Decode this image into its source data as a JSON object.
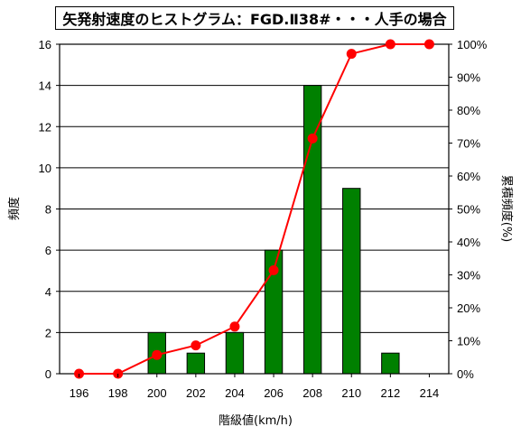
{
  "chart_data": {
    "type": "bar+line",
    "title": "矢発射速度のヒストグラム：FGD.Ⅱ38#・・・人手の場合",
    "xlabel": "階級値(km/h)",
    "ylabel_left": "頻度",
    "ylabel_right": "累積頻度(%)",
    "categories": [
      "196",
      "198",
      "200",
      "202",
      "204",
      "206",
      "208",
      "210",
      "212",
      "214"
    ],
    "bar_values": [
      0,
      0,
      2,
      1,
      2,
      6,
      14,
      9,
      1,
      0
    ],
    "cumulative_percent": [
      0,
      0,
      5.7,
      8.6,
      14.3,
      31.4,
      71.4,
      97.1,
      100,
      100
    ],
    "ylim_left": [
      0,
      16
    ],
    "yticks_left": [
      "0",
      "2",
      "4",
      "6",
      "8",
      "10",
      "12",
      "14",
      "16"
    ],
    "ylim_right": [
      0,
      100
    ],
    "yticks_right": [
      "0%",
      "10%",
      "20%",
      "30%",
      "40%",
      "50%",
      "60%",
      "70%",
      "80%",
      "90%",
      "100%"
    ],
    "grid": true,
    "bar_color": "#008000",
    "line_color": "#ff0000"
  }
}
